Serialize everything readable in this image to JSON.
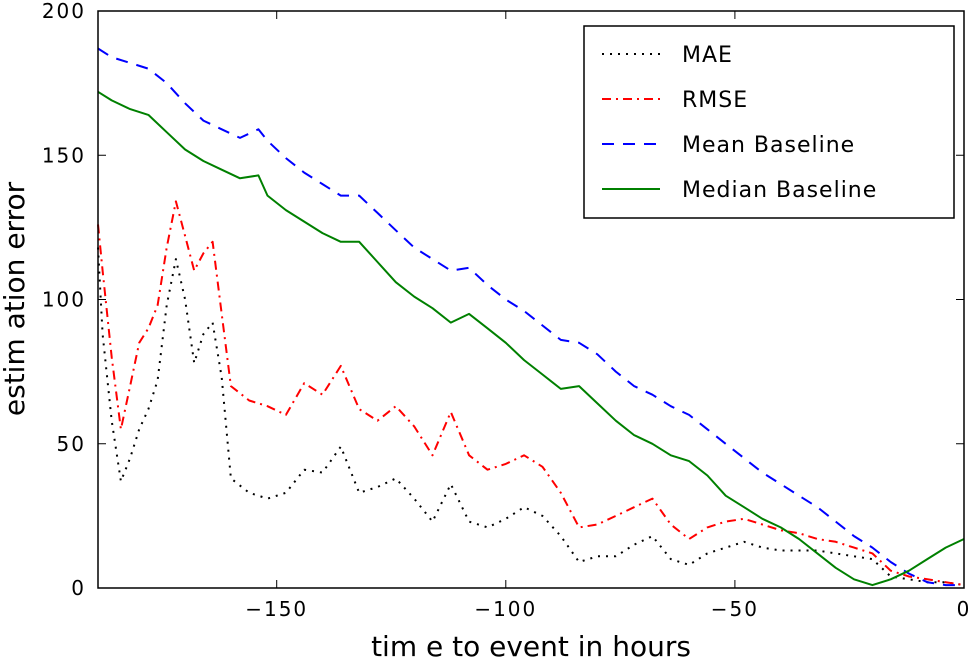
{
  "chart_data": {
    "type": "line",
    "xlabel": "tim e to event in hours",
    "ylabel": "estim ation error",
    "xlim": [
      -189,
      0
    ],
    "ylim": [
      0,
      200
    ],
    "xticks": [
      -150,
      -100,
      -50,
      0
    ],
    "xtick_labels": [
      "−150",
      "−100",
      "−50",
      "0"
    ],
    "yticks": [
      0,
      50,
      100,
      150,
      200
    ],
    "ytick_labels": [
      "0",
      "50",
      "100",
      "150",
      "200"
    ],
    "grid": false,
    "legend_position": "top-right",
    "series": [
      {
        "name": "MAE",
        "color": "#000000",
        "dash": "2,6",
        "x": [
          -189,
          -188,
          -186,
          -184,
          -182,
          -180,
          -178,
          -176,
          -174,
          -172,
          -170,
          -168,
          -166,
          -164,
          -162,
          -160,
          -156,
          -152,
          -148,
          -144,
          -140,
          -136,
          -132,
          -128,
          -124,
          -120,
          -116,
          -112,
          -108,
          -104,
          -100,
          -96,
          -92,
          -88,
          -84,
          -80,
          -76,
          -72,
          -68,
          -64,
          -60,
          -56,
          -52,
          -48,
          -44,
          -40,
          -36,
          -32,
          -28,
          -24,
          -20,
          -16,
          -12,
          -8,
          -4,
          0
        ],
        "y": [
          118,
          88,
          58,
          37,
          45,
          55,
          62,
          72,
          98,
          114,
          100,
          78,
          88,
          92,
          73,
          38,
          33,
          31,
          33,
          41,
          40,
          49,
          33,
          35,
          38,
          31,
          23,
          36,
          23,
          21,
          24,
          28,
          25,
          18,
          9,
          11,
          11,
          15,
          18,
          10,
          8,
          12,
          14,
          16,
          14,
          13,
          13,
          13,
          12,
          11,
          10,
          4,
          3,
          2,
          2,
          1
        ]
      },
      {
        "name": "RMSE",
        "color": "#ff0000",
        "dash": "9,5,2,5",
        "x": [
          -189,
          -188,
          -186,
          -184,
          -182,
          -180,
          -178,
          -176,
          -174,
          -172,
          -170,
          -168,
          -166,
          -164,
          -162,
          -160,
          -156,
          -152,
          -148,
          -144,
          -140,
          -136,
          -132,
          -128,
          -124,
          -120,
          -116,
          -112,
          -108,
          -104,
          -100,
          -96,
          -92,
          -88,
          -84,
          -80,
          -76,
          -72,
          -68,
          -64,
          -60,
          -56,
          -52,
          -48,
          -44,
          -40,
          -36,
          -32,
          -28,
          -24,
          -20,
          -16,
          -12,
          -8,
          -4,
          0
        ],
        "y": [
          126,
          110,
          80,
          55,
          70,
          85,
          90,
          98,
          118,
          134,
          122,
          110,
          116,
          120,
          95,
          70,
          65,
          63,
          60,
          71,
          67,
          77,
          62,
          58,
          63,
          56,
          46,
          61,
          46,
          41,
          43,
          46,
          42,
          33,
          21,
          22,
          25,
          28,
          31,
          22,
          17,
          21,
          23,
          24,
          22,
          20,
          19,
          17,
          16,
          14,
          12,
          6,
          4,
          3,
          2,
          1
        ]
      },
      {
        "name": "Mean Baseline",
        "color": "#0000ff",
        "dash": "12,9",
        "x": [
          -189,
          -186,
          -182,
          -178,
          -174,
          -170,
          -166,
          -162,
          -158,
          -154,
          -152,
          -148,
          -144,
          -140,
          -136,
          -132,
          -128,
          -124,
          -120,
          -116,
          -112,
          -108,
          -104,
          -100,
          -96,
          -92,
          -88,
          -84,
          -80,
          -76,
          -72,
          -68,
          -64,
          -60,
          -56,
          -52,
          -48,
          -44,
          -40,
          -36,
          -32,
          -28,
          -24,
          -20,
          -16,
          -12,
          -8,
          -4,
          -2,
          0
        ],
        "y": [
          187,
          184,
          182,
          180,
          175,
          168,
          162,
          159,
          156,
          159,
          155,
          149,
          144,
          140,
          136,
          136,
          130,
          124,
          118,
          114,
          110,
          111,
          105,
          100,
          96,
          91,
          86,
          85,
          81,
          75,
          70,
          67,
          63,
          60,
          55,
          50,
          45,
          40,
          36,
          32,
          28,
          23,
          18,
          14,
          9,
          5,
          2,
          1,
          1,
          1
        ]
      },
      {
        "name": "Median Baseline",
        "color": "#008000",
        "dash": "",
        "x": [
          -189,
          -186,
          -182,
          -178,
          -174,
          -170,
          -166,
          -162,
          -158,
          -154,
          -152,
          -148,
          -144,
          -140,
          -136,
          -132,
          -128,
          -124,
          -120,
          -116,
          -112,
          -108,
          -104,
          -100,
          -96,
          -92,
          -88,
          -84,
          -80,
          -76,
          -72,
          -68,
          -64,
          -60,
          -56,
          -52,
          -48,
          -44,
          -40,
          -36,
          -32,
          -28,
          -24,
          -20,
          -16,
          -12,
          -8,
          -4,
          0
        ],
        "y": [
          172,
          169,
          166,
          164,
          158,
          152,
          148,
          145,
          142,
          143,
          136,
          131,
          127,
          123,
          120,
          120,
          113,
          106,
          101,
          97,
          92,
          95,
          90,
          85,
          79,
          74,
          69,
          70,
          64,
          58,
          53,
          50,
          46,
          44,
          39,
          32,
          28,
          24,
          21,
          17,
          12,
          7,
          3,
          1,
          3,
          6,
          10,
          14,
          17
        ]
      }
    ]
  }
}
